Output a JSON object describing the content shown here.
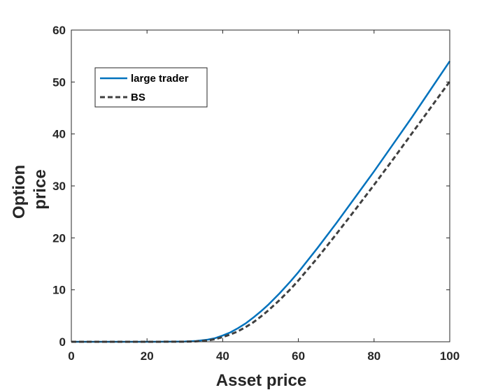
{
  "chart_data": {
    "type": "line",
    "title": "",
    "xlabel": "Asset price",
    "ylabel_lines": [
      "Option",
      "price"
    ],
    "xlim": [
      0,
      100
    ],
    "ylim": [
      0,
      60
    ],
    "xticks": [
      0,
      20,
      40,
      60,
      80,
      100
    ],
    "yticks": [
      0,
      10,
      20,
      30,
      40,
      50,
      60
    ],
    "grid": false,
    "legend_position": "top-left",
    "series": [
      {
        "name": "large trader",
        "style": "solid",
        "color": "#0072BD",
        "x": [
          0,
          10,
          20,
          30,
          33,
          36,
          38,
          40,
          42,
          44,
          46,
          48,
          50,
          52,
          55,
          58,
          60,
          65,
          70,
          75,
          80,
          85,
          90,
          95,
          100
        ],
        "y": [
          0,
          0,
          0,
          0.05,
          0.15,
          0.4,
          0.7,
          1.2,
          1.8,
          2.6,
          3.5,
          4.6,
          5.8,
          7.1,
          9.3,
          11.7,
          13.4,
          18.0,
          22.8,
          27.8,
          32.8,
          38.0,
          43.2,
          48.6,
          54.0
        ]
      },
      {
        "name": "BS",
        "style": "dashed",
        "color": "#404040",
        "x": [
          0,
          10,
          20,
          30,
          33,
          36,
          38,
          40,
          42,
          44,
          46,
          48,
          50,
          52,
          55,
          58,
          60,
          65,
          70,
          75,
          80,
          85,
          90,
          95,
          100
        ],
        "y": [
          0,
          0,
          0,
          0.02,
          0.08,
          0.25,
          0.5,
          0.9,
          1.4,
          2.0,
          2.8,
          3.7,
          4.8,
          6.0,
          8.0,
          10.2,
          11.8,
          16.1,
          20.7,
          25.4,
          30.2,
          35.1,
          40.1,
          45.1,
          50.1
        ]
      }
    ]
  }
}
